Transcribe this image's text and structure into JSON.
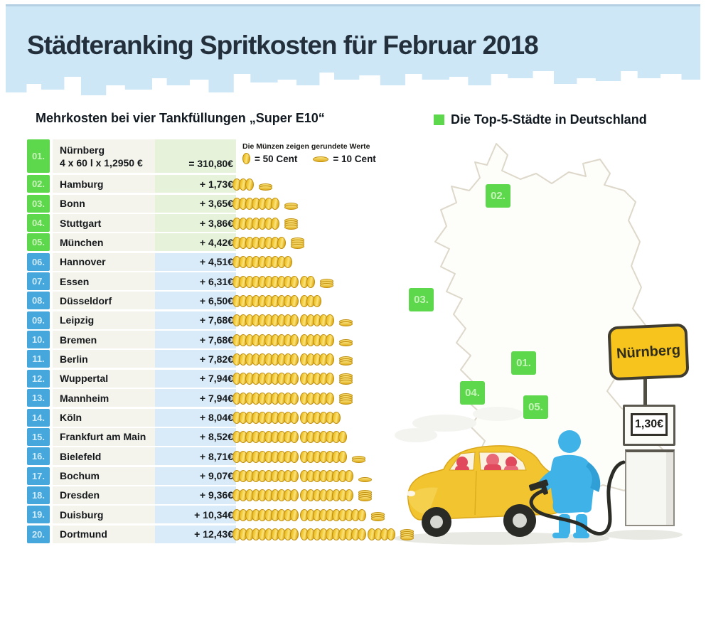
{
  "title": "Städteranking Spritkosten für Februar 2018",
  "subtitle": "Mehrkosten bei vier Tankfüllungen „Super E10“",
  "top5_legend": "Die Top-5-Städte in Deutschland",
  "coin_legend": {
    "note": "Die Münzen zeigen gerundete Werte",
    "coin50_label": "= 50 Cent",
    "coin10_label": "= 10 Cent"
  },
  "ranking": {
    "first_row": {
      "rank": "01.",
      "city": "Nürnberg",
      "calc": "4 x 60 l x 1,2950 €",
      "value": "= 310,80€"
    },
    "rows": [
      {
        "rank": "02.",
        "city": "Hamburg",
        "value": "+ 1,73€",
        "coins50": 3,
        "coins10": 2,
        "top5": true
      },
      {
        "rank": "03.",
        "city": "Bonn",
        "value": "+ 3,65€",
        "coins50": 7,
        "coins10": 2,
        "top5": true
      },
      {
        "rank": "04.",
        "city": "Stuttgart",
        "value": "+ 3,86€",
        "coins50": 7,
        "coins10": 4,
        "top5": true
      },
      {
        "rank": "05.",
        "city": "München",
        "value": "+ 4,42€",
        "coins50": 8,
        "coins10": 4,
        "top5": true
      },
      {
        "rank": "06.",
        "city": "Hannover",
        "value": "+ 4,51€",
        "coins50": 9,
        "coins10": 0,
        "top5": false
      },
      {
        "rank": "07.",
        "city": "Essen",
        "value": "+ 6,31€",
        "coins50": 12,
        "coins10": 3,
        "top5": false
      },
      {
        "rank": "08.",
        "city": "Düsseldorf",
        "value": "+ 6,50€",
        "coins50": 13,
        "coins10": 0,
        "top5": false
      },
      {
        "rank": "09.",
        "city": "Leipzig",
        "value": "+ 7,68€",
        "coins50": 15,
        "coins10": 2,
        "top5": false
      },
      {
        "rank": "10.",
        "city": "Bremen",
        "value": "+ 7,68€",
        "coins50": 15,
        "coins10": 2,
        "top5": false
      },
      {
        "rank": "11.",
        "city": "Berlin",
        "value": "+ 7,82€",
        "coins50": 15,
        "coins10": 3,
        "top5": false
      },
      {
        "rank": "12.",
        "city": "Wuppertal",
        "value": "+ 7,94€",
        "coins50": 15,
        "coins10": 4,
        "top5": false
      },
      {
        "rank": "13.",
        "city": "Mannheim",
        "value": "+ 7,94€",
        "coins50": 15,
        "coins10": 4,
        "top5": false
      },
      {
        "rank": "14.",
        "city": "Köln",
        "value": "+ 8,04€",
        "coins50": 16,
        "coins10": 0,
        "top5": false
      },
      {
        "rank": "15.",
        "city": "Frankfurt am Main",
        "value": "+ 8,52€",
        "coins50": 17,
        "coins10": 0,
        "top5": false
      },
      {
        "rank": "16.",
        "city": "Bielefeld",
        "value": "+ 8,71€",
        "coins50": 17,
        "coins10": 2,
        "top5": false
      },
      {
        "rank": "17.",
        "city": "Bochum",
        "value": "+ 9,07€",
        "coins50": 18,
        "coins10": 1,
        "top5": false
      },
      {
        "rank": "18.",
        "city": "Dresden",
        "value": "+ 9,36€",
        "coins50": 18,
        "coins10": 4,
        "top5": false
      },
      {
        "rank": "19.",
        "city": "Duisburg",
        "value": "+ 10,34€",
        "coins50": 20,
        "coins10": 3,
        "top5": false
      },
      {
        "rank": "20.",
        "city": "Dortmund",
        "value": "+ 12,43€",
        "coins50": 24,
        "coins10": 4,
        "top5": false
      }
    ]
  },
  "map": {
    "badges": [
      {
        "label": "02."
      },
      {
        "label": "03."
      },
      {
        "label": "01."
      },
      {
        "label": "04."
      },
      {
        "label": "05."
      }
    ],
    "sign_label": "Nürnberg",
    "pump_price": "1,30€"
  },
  "colors": {
    "header_blue": "#cde7f7",
    "top5_green": "#5dd74b",
    "rank_blue": "#45a7db",
    "row_cream": "#f4f4ec",
    "tint_green": "#e6f3da",
    "tint_blue": "#d9ebf8",
    "coin_gold": "#f2c937",
    "sign_yellow": "#f6c41c",
    "person_blue": "#3fb3e7",
    "car_yellow": "#f1c430"
  },
  "chart_data": {
    "type": "bar",
    "title": "Städteranking Spritkosten für Februar 2018",
    "subtitle": "Mehrkosten bei vier Tankfüllungen „Super E10“",
    "unit": "EUR",
    "baseline": {
      "city": "Nürnberg",
      "calc": "4 x 60 l x 1,2950 €",
      "total_eur": 310.8,
      "price_per_liter": 1.295
    },
    "categories": [
      "Nürnberg",
      "Hamburg",
      "Bonn",
      "Stuttgart",
      "München",
      "Hannover",
      "Essen",
      "Düsseldorf",
      "Leipzig",
      "Bremen",
      "Berlin",
      "Wuppertal",
      "Mannheim",
      "Köln",
      "Frankfurt am Main",
      "Bielefeld",
      "Bochum",
      "Dresden",
      "Duisburg",
      "Dortmund"
    ],
    "values": [
      0,
      1.73,
      3.65,
      3.86,
      4.42,
      4.51,
      6.31,
      6.5,
      7.68,
      7.68,
      7.82,
      7.94,
      7.94,
      8.04,
      8.52,
      8.71,
      9.07,
      9.36,
      10.34,
      12.43
    ],
    "top5": [
      "Nürnberg",
      "Hamburg",
      "Bonn",
      "Stuttgart",
      "München"
    ],
    "coin_units": {
      "standing_coin_eur": 0.5,
      "flat_coin_eur": 0.1
    },
    "legend": "Die Top-5-Städte in Deutschland",
    "pump_price_display": "1,30€"
  }
}
